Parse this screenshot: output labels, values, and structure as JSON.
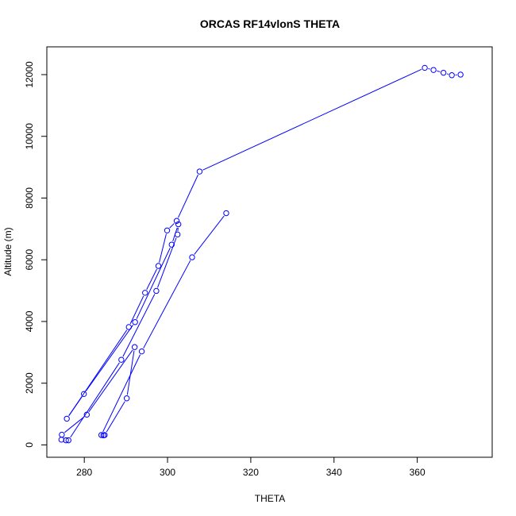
{
  "chart_data": {
    "type": "scatter",
    "title": "ORCAS RF14vlonS THETA",
    "xlabel": "THETA",
    "ylabel": "Altitude (m)",
    "xlim": [
      271,
      378
    ],
    "ylim": [
      -400,
      12900
    ],
    "xticks": [
      280,
      300,
      320,
      340,
      360
    ],
    "yticks": [
      0,
      2000,
      4000,
      6000,
      8000,
      10000,
      12000
    ],
    "grid": false,
    "series": [
      {
        "color": "#0000ff",
        "marker": "open-circle",
        "line": true,
        "points": [
          {
            "x": 370.4,
            "y": 12000
          },
          {
            "x": 368.3,
            "y": 11980
          },
          {
            "x": 366.3,
            "y": 12060
          },
          {
            "x": 363.9,
            "y": 12150
          },
          {
            "x": 361.8,
            "y": 12220
          },
          {
            "x": 307.7,
            "y": 8860
          },
          {
            "x": 302.2,
            "y": 7260
          },
          {
            "x": 299.9,
            "y": 6950
          },
          {
            "x": 297.8,
            "y": 5800
          },
          {
            "x": 294.6,
            "y": 4930
          },
          {
            "x": 290.7,
            "y": 3820
          },
          {
            "x": 275.8,
            "y": 850
          },
          {
            "x": 279.9,
            "y": 1650
          },
          {
            "x": 292.2,
            "y": 3980
          },
          {
            "x": 301.0,
            "y": 6490
          },
          {
            "x": 302.6,
            "y": 7150
          },
          {
            "x": 302.4,
            "y": 6820
          },
          {
            "x": 297.3,
            "y": 4990
          },
          {
            "x": 288.9,
            "y": 2760
          },
          {
            "x": 276.2,
            "y": 150
          },
          {
            "x": 275.6,
            "y": 150
          },
          {
            "x": 274.5,
            "y": 170
          },
          {
            "x": 274.6,
            "y": 330
          },
          {
            "x": 280.6,
            "y": 980
          },
          {
            "x": 292.1,
            "y": 3170
          },
          {
            "x": 290.2,
            "y": 1510
          },
          {
            "x": 284.9,
            "y": 320
          },
          {
            "x": 284.6,
            "y": 310
          },
          {
            "x": 284.1,
            "y": 320
          },
          {
            "x": 293.8,
            "y": 3030
          },
          {
            "x": 305.9,
            "y": 6080
          },
          {
            "x": 314.1,
            "y": 7510
          }
        ]
      }
    ]
  }
}
